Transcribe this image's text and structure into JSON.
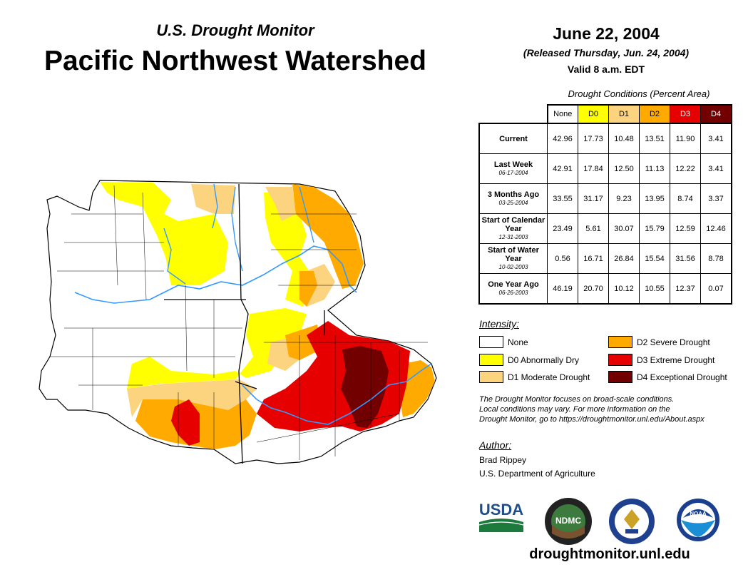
{
  "header": {
    "subtitle": "U.S. Drought Monitor",
    "title": "Pacific Northwest Watershed",
    "date": "June 22, 2004",
    "released": "(Released Thursday, Jun. 24, 2004)",
    "valid": "Valid 8 a.m. EDT"
  },
  "table": {
    "caption": "Drought Conditions (Percent Area)",
    "columns": [
      "None",
      "D0",
      "D1",
      "D2",
      "D3",
      "D4"
    ],
    "rows": [
      {
        "label": "Current",
        "date": "",
        "values": [
          "42.96",
          "17.73",
          "10.48",
          "13.51",
          "11.90",
          "3.41"
        ]
      },
      {
        "label": "Last Week",
        "date": "06-17-2004",
        "values": [
          "42.91",
          "17.84",
          "12.50",
          "11.13",
          "12.22",
          "3.41"
        ]
      },
      {
        "label": "3 Months Ago",
        "date": "03-25-2004",
        "values": [
          "33.55",
          "31.17",
          "9.23",
          "13.95",
          "8.74",
          "3.37"
        ]
      },
      {
        "label": "Start of Calendar Year",
        "date": "12-31-2003",
        "values": [
          "23.49",
          "5.61",
          "30.07",
          "15.79",
          "12.59",
          "12.46"
        ]
      },
      {
        "label": "Start of Water Year",
        "date": "10-02-2003",
        "values": [
          "0.56",
          "16.71",
          "26.84",
          "15.54",
          "31.56",
          "8.78"
        ]
      },
      {
        "label": "One Year Ago",
        "date": "06-26-2003",
        "values": [
          "46.19",
          "20.70",
          "10.12",
          "10.55",
          "12.37",
          "0.07"
        ]
      }
    ]
  },
  "legend": {
    "title": "Intensity:",
    "items": [
      {
        "label": "None",
        "color": "#ffffff"
      },
      {
        "label": "D0 Abnormally Dry",
        "color": "#ffff00"
      },
      {
        "label": "D1 Moderate Drought",
        "color": "#fcd37f"
      },
      {
        "label": "D2 Severe Drought",
        "color": "#ffaa00"
      },
      {
        "label": "D3 Extreme Drought",
        "color": "#e60000"
      },
      {
        "label": "D4 Exceptional Drought",
        "color": "#730000"
      }
    ]
  },
  "note": {
    "line1": "The Drought Monitor focuses on broad-scale conditions.",
    "line2": "Local conditions may vary. For more information on the",
    "line3": "Drought Monitor, go to https://droughtmonitor.unl.edu/About.aspx"
  },
  "author": {
    "title": "Author:",
    "name": "Brad Rippey",
    "org": "U.S. Department of Agriculture"
  },
  "logos": {
    "usda": "USDA",
    "ndmc": "NDMC",
    "noaa": "NOAA"
  },
  "footer": {
    "url": "droughtmonitor.unl.edu"
  }
}
